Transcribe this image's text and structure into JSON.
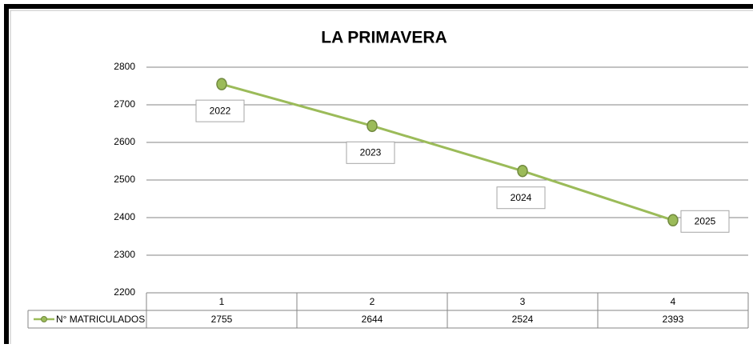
{
  "chart_data": {
    "type": "line",
    "title": "LA PRIMAVERA",
    "categories": [
      "1",
      "2",
      "3",
      "4"
    ],
    "series": [
      {
        "name": "N° MATRICULADOS",
        "color": "#9bbb59",
        "values": [
          2755,
          2644,
          2524,
          2393
        ],
        "annotations": [
          "2022",
          "2023",
          "2024",
          "2025"
        ]
      }
    ],
    "ylim": [
      2200,
      2800
    ],
    "yticks": [
      2200,
      2300,
      2400,
      2500,
      2600,
      2700,
      2800
    ],
    "grid": true,
    "data_table": true
  }
}
